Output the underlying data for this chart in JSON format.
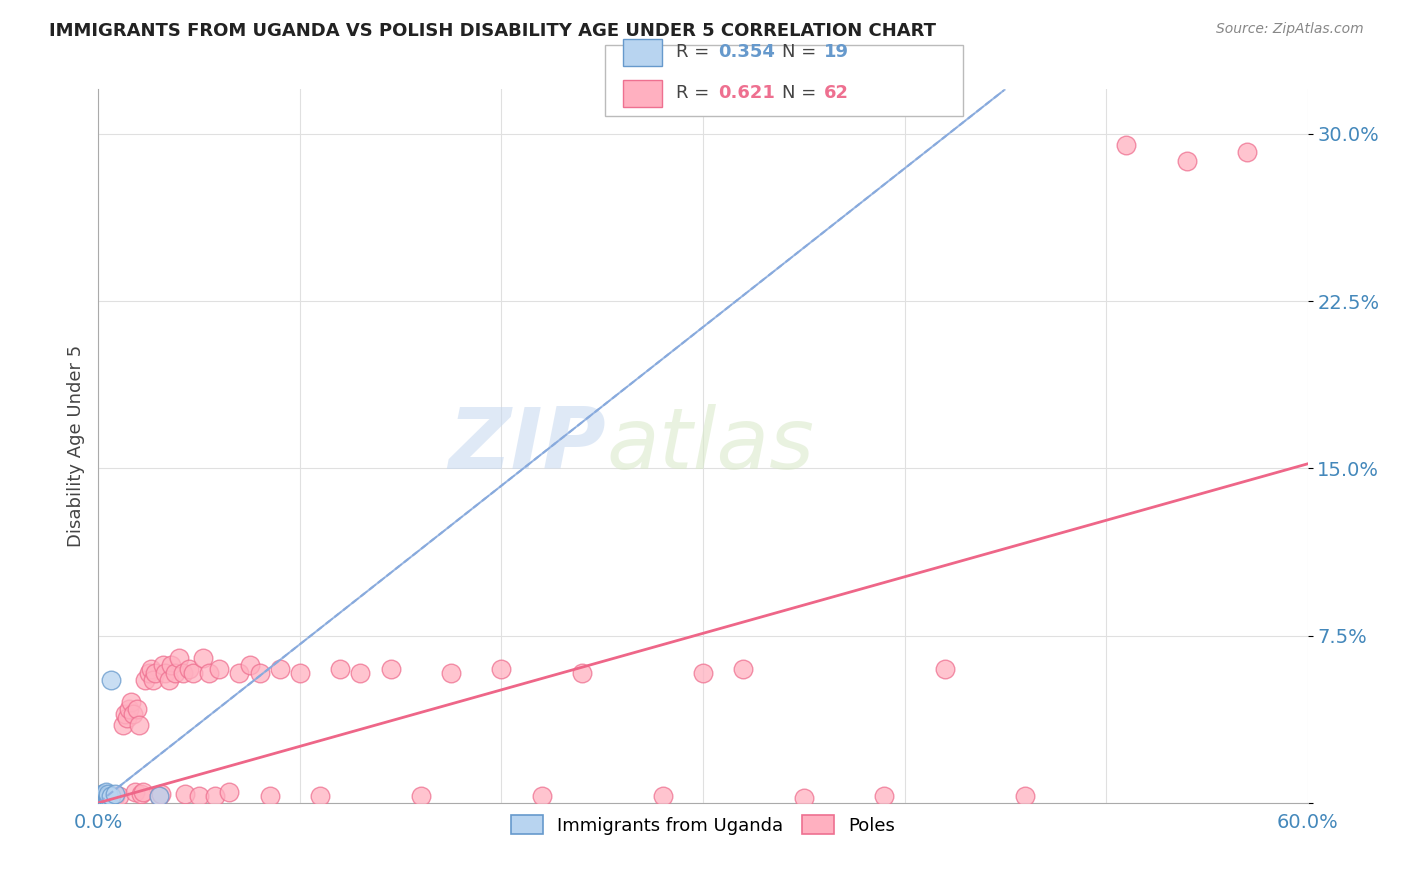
{
  "title": "IMMIGRANTS FROM UGANDA VS POLISH DISABILITY AGE UNDER 5 CORRELATION CHART",
  "source": "Source: ZipAtlas.com",
  "ylabel": "Disability Age Under 5",
  "xlim": [
    0.0,
    0.6
  ],
  "ylim": [
    0.0,
    0.32
  ],
  "xticks": [
    0.0,
    0.1,
    0.2,
    0.3,
    0.4,
    0.5,
    0.6
  ],
  "xticklabels": [
    "0.0%",
    "",
    "",
    "",
    "",
    "",
    "60.0%"
  ],
  "yticks": [
    0.0,
    0.075,
    0.15,
    0.225,
    0.3
  ],
  "yticklabels": [
    "",
    "7.5%",
    "15.0%",
    "22.5%",
    "30.0%"
  ],
  "grid_color": "#e0e0e0",
  "background_color": "#ffffff",
  "watermark_zip": "ZIP",
  "watermark_atlas": "atlas",
  "uganda_color": "#b8d4f0",
  "uganda_edge_color": "#6699cc",
  "poles_color": "#ffb0c0",
  "poles_edge_color": "#ee7090",
  "uganda_line_color": "#88aadd",
  "poles_line_color": "#ee6688",
  "uganda_R": 0.354,
  "uganda_N": 19,
  "poles_R": 0.621,
  "poles_N": 62,
  "uganda_x": [
    0.001,
    0.001,
    0.002,
    0.002,
    0.002,
    0.003,
    0.003,
    0.003,
    0.004,
    0.004,
    0.004,
    0.004,
    0.005,
    0.005,
    0.005,
    0.006,
    0.006,
    0.008,
    0.03
  ],
  "uganda_y": [
    0.002,
    0.003,
    0.002,
    0.003,
    0.004,
    0.002,
    0.003,
    0.004,
    0.002,
    0.003,
    0.004,
    0.005,
    0.002,
    0.003,
    0.004,
    0.003,
    0.055,
    0.004,
    0.003
  ],
  "poles_x": [
    0.005,
    0.008,
    0.01,
    0.012,
    0.013,
    0.014,
    0.015,
    0.016,
    0.017,
    0.018,
    0.019,
    0.02,
    0.021,
    0.022,
    0.023,
    0.025,
    0.026,
    0.027,
    0.028,
    0.03,
    0.031,
    0.032,
    0.033,
    0.035,
    0.036,
    0.038,
    0.04,
    0.042,
    0.043,
    0.045,
    0.047,
    0.05,
    0.052,
    0.055,
    0.058,
    0.06,
    0.065,
    0.07,
    0.075,
    0.08,
    0.085,
    0.09,
    0.1,
    0.11,
    0.12,
    0.13,
    0.145,
    0.16,
    0.175,
    0.2,
    0.22,
    0.24,
    0.28,
    0.3,
    0.32,
    0.35,
    0.39,
    0.42,
    0.46,
    0.51,
    0.54,
    0.57
  ],
  "poles_y": [
    0.002,
    0.003,
    0.003,
    0.035,
    0.04,
    0.038,
    0.042,
    0.045,
    0.04,
    0.005,
    0.042,
    0.035,
    0.004,
    0.005,
    0.055,
    0.058,
    0.06,
    0.055,
    0.058,
    0.003,
    0.004,
    0.062,
    0.058,
    0.055,
    0.062,
    0.058,
    0.065,
    0.058,
    0.004,
    0.06,
    0.058,
    0.003,
    0.065,
    0.058,
    0.003,
    0.06,
    0.005,
    0.058,
    0.062,
    0.058,
    0.003,
    0.06,
    0.058,
    0.003,
    0.06,
    0.058,
    0.06,
    0.003,
    0.058,
    0.06,
    0.003,
    0.058,
    0.003,
    0.058,
    0.06,
    0.002,
    0.003,
    0.06,
    0.003,
    0.295,
    0.288,
    0.292
  ],
  "poles_line_x0": 0.0,
  "poles_line_y0": 0.0,
  "poles_line_x1": 0.6,
  "poles_line_y1": 0.152,
  "uganda_line_x0": 0.0,
  "uganda_line_y0": 0.0,
  "uganda_line_x1": 0.45,
  "uganda_line_y1": 0.32
}
